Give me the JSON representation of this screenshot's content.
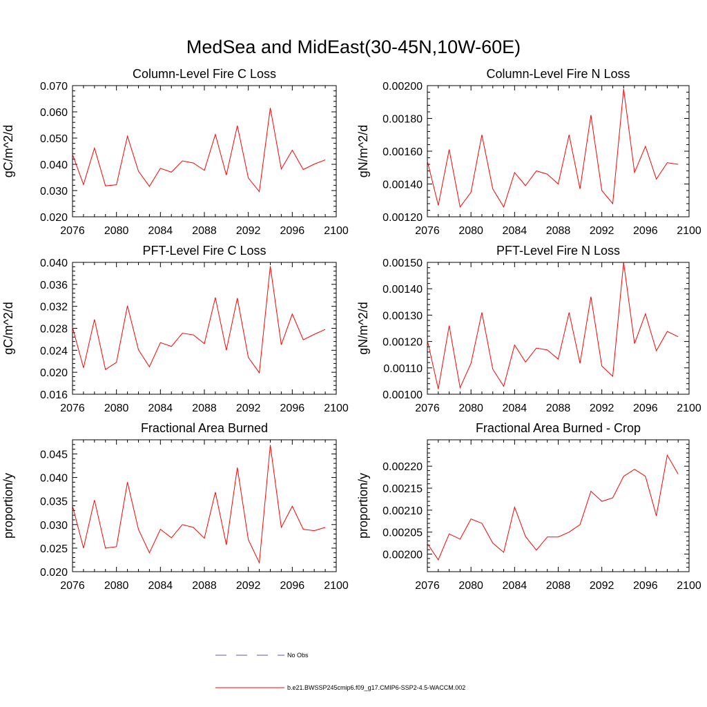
{
  "title": "MedSea and MidEast(30-45N,10W-60E)",
  "colors": {
    "series": "#ff0000",
    "obs": "#5a5aa0",
    "axis": "#000000"
  },
  "legend": {
    "obs_label": "No Obs",
    "model_label": "b.e21.BWSSP245cmip6.f09_g17.CMIP6-SSP2-4.5-WACCM.002"
  },
  "chart_data": [
    {
      "type": "line",
      "title": "Column-Level Fire C Loss",
      "ylabel": "gC/m^2/d",
      "xlim": [
        2076,
        2100
      ],
      "x_ticks": [
        2076,
        2080,
        2084,
        2088,
        2092,
        2096,
        2100
      ],
      "ylim": [
        0.02,
        0.07
      ],
      "y_ticks": [
        "0.020",
        "0.030",
        "0.040",
        "0.050",
        "0.060",
        "0.070"
      ],
      "x": [
        2076,
        2077,
        2078,
        2079,
        2080,
        2081,
        2082,
        2083,
        2084,
        2085,
        2086,
        2087,
        2088,
        2089,
        2090,
        2091,
        2092,
        2093,
        2094,
        2095,
        2096,
        2097,
        2098,
        2099
      ],
      "series": [
        {
          "name": "b.e21.BWSSP245cmip6.f09_g17.CMIP6-SSP2-4.5-WACCM.002",
          "values": [
            0.0438,
            0.0323,
            0.0462,
            0.0318,
            0.0322,
            0.0507,
            0.0374,
            0.0316,
            0.0385,
            0.037,
            0.0413,
            0.0405,
            0.0377,
            0.0514,
            0.0359,
            0.0547,
            0.0348,
            0.0296,
            0.0615,
            0.0382,
            0.0454,
            0.038,
            0.0401,
            0.0417
          ]
        }
      ]
    },
    {
      "type": "line",
      "title": "Column-Level Fire N Loss",
      "ylabel": "gN/m^2/d",
      "xlim": [
        2076,
        2100
      ],
      "x_ticks": [
        2076,
        2080,
        2084,
        2088,
        2092,
        2096,
        2100
      ],
      "ylim": [
        0.0012,
        0.002
      ],
      "y_ticks": [
        "0.00120",
        "0.00140",
        "0.00160",
        "0.00180",
        "0.00200"
      ],
      "x": [
        2076,
        2077,
        2078,
        2079,
        2080,
        2081,
        2082,
        2083,
        2084,
        2085,
        2086,
        2087,
        2088,
        2089,
        2090,
        2091,
        2092,
        2093,
        2094,
        2095,
        2096,
        2097,
        2098,
        2099
      ],
      "series": [
        {
          "name": "b.e21.BWSSP245cmip6.f09_g17.CMIP6-SSP2-4.5-WACCM.002",
          "values": [
            0.00154,
            0.00127,
            0.00161,
            0.00126,
            0.00135,
            0.0017,
            0.00137,
            0.00126,
            0.00147,
            0.00139,
            0.00148,
            0.00146,
            0.0014,
            0.0017,
            0.00137,
            0.00182,
            0.00136,
            0.00128,
            0.00198,
            0.00147,
            0.00163,
            0.00143,
            0.00153,
            0.00152
          ]
        }
      ]
    },
    {
      "type": "line",
      "title": "PFT-Level Fire C Loss",
      "ylabel": "gC/m^2/d",
      "xlim": [
        2076,
        2100
      ],
      "x_ticks": [
        2076,
        2080,
        2084,
        2088,
        2092,
        2096,
        2100
      ],
      "ylim": [
        0.016,
        0.04
      ],
      "y_ticks": [
        "0.016",
        "0.020",
        "0.024",
        "0.028",
        "0.032",
        "0.036",
        "0.040"
      ],
      "x": [
        2076,
        2077,
        2078,
        2079,
        2080,
        2081,
        2082,
        2083,
        2084,
        2085,
        2086,
        2087,
        2088,
        2089,
        2090,
        2091,
        2092,
        2093,
        2094,
        2095,
        2096,
        2097,
        2098,
        2099
      ],
      "series": [
        {
          "name": "b.e21.BWSSP245cmip6.f09_g17.CMIP6-SSP2-4.5-WACCM.002",
          "values": [
            0.0282,
            0.0208,
            0.0296,
            0.0205,
            0.0218,
            0.0321,
            0.0241,
            0.021,
            0.0254,
            0.0247,
            0.0271,
            0.0268,
            0.0252,
            0.0336,
            0.024,
            0.0335,
            0.0227,
            0.0199,
            0.0393,
            0.025,
            0.0306,
            0.0259,
            0.0269,
            0.0278
          ]
        }
      ]
    },
    {
      "type": "line",
      "title": "PFT-Level Fire N Loss",
      "ylabel": "gN/m^2/d",
      "xlim": [
        2076,
        2100
      ],
      "x_ticks": [
        2076,
        2080,
        2084,
        2088,
        2092,
        2096,
        2100
      ],
      "ylim": [
        0.001,
        0.0015
      ],
      "y_ticks": [
        "0.00100",
        "0.00110",
        "0.00120",
        "0.00130",
        "0.00140",
        "0.00150"
      ],
      "x": [
        2076,
        2077,
        2078,
        2079,
        2080,
        2081,
        2082,
        2083,
        2084,
        2085,
        2086,
        2087,
        2088,
        2089,
        2090,
        2091,
        2092,
        2093,
        2094,
        2095,
        2096,
        2097,
        2098,
        2099
      ],
      "series": [
        {
          "name": "b.e21.BWSSP245cmip6.f09_g17.CMIP6-SSP2-4.5-WACCM.002",
          "values": [
            0.001205,
            0.00102,
            0.00126,
            0.001025,
            0.001117,
            0.00131,
            0.001095,
            0.00103,
            0.001187,
            0.001122,
            0.001175,
            0.001168,
            0.001133,
            0.00131,
            0.001117,
            0.00137,
            0.001107,
            0.001068,
            0.0015,
            0.001192,
            0.001305,
            0.001165,
            0.001238,
            0.001218
          ]
        }
      ]
    },
    {
      "type": "line",
      "title": "Fractional Area Burned",
      "ylabel": "proportion/y",
      "xlim": [
        2076,
        2100
      ],
      "x_ticks": [
        2076,
        2080,
        2084,
        2088,
        2092,
        2096,
        2100
      ],
      "ylim": [
        0.02,
        0.048
      ],
      "y_ticks": [
        "0.020",
        "0.025",
        "0.030",
        "0.035",
        "0.040",
        "0.045"
      ],
      "x": [
        2076,
        2077,
        2078,
        2079,
        2080,
        2081,
        2082,
        2083,
        2084,
        2085,
        2086,
        2087,
        2088,
        2089,
        2090,
        2091,
        2092,
        2093,
        2094,
        2095,
        2096,
        2097,
        2098,
        2099
      ],
      "series": [
        {
          "name": "b.e21.BWSSP245cmip6.f09_g17.CMIP6-SSP2-4.5-WACCM.002",
          "values": [
            0.034,
            0.025,
            0.0352,
            0.025,
            0.0253,
            0.039,
            0.029,
            0.024,
            0.029,
            0.0272,
            0.03,
            0.0294,
            0.0271,
            0.0369,
            0.0257,
            0.0421,
            0.0268,
            0.0219,
            0.0469,
            0.0294,
            0.0339,
            0.029,
            0.0287,
            0.0294
          ]
        }
      ]
    },
    {
      "type": "line",
      "title": "Fractional Area Burned - Crop",
      "ylabel": "proportion/y",
      "xlim": [
        2076,
        2100
      ],
      "x_ticks": [
        2076,
        2080,
        2084,
        2088,
        2092,
        2096,
        2100
      ],
      "ylim": [
        0.00196,
        0.00226
      ],
      "y_ticks": [
        "0.00200",
        "0.00205",
        "0.00210",
        "0.00215",
        "0.00220"
      ],
      "x": [
        2076,
        2077,
        2078,
        2079,
        2080,
        2081,
        2082,
        2083,
        2084,
        2085,
        2086,
        2087,
        2088,
        2089,
        2090,
        2091,
        2092,
        2093,
        2094,
        2095,
        2096,
        2097,
        2098,
        2099
      ],
      "series": [
        {
          "name": "b.e21.BWSSP245cmip6.f09_g17.CMIP6-SSP2-4.5-WACCM.002",
          "values": [
            0.002024,
            0.001987,
            0.002046,
            0.002034,
            0.00208,
            0.00207,
            0.002025,
            0.002004,
            0.002107,
            0.00204,
            0.002009,
            0.002039,
            0.002039,
            0.00205,
            0.002067,
            0.002143,
            0.00212,
            0.002128,
            0.002177,
            0.002193,
            0.002177,
            0.002087,
            0.002225,
            0.002182
          ]
        }
      ]
    }
  ]
}
